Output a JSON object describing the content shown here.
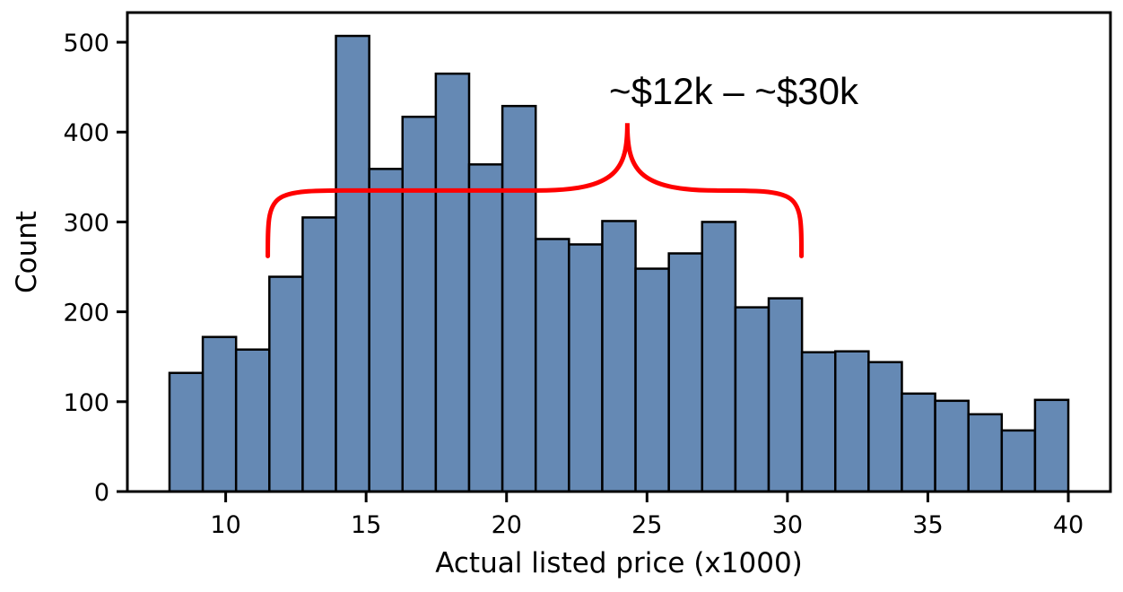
{
  "chart_data": {
    "type": "bar",
    "xlabel": "Actual listed price (x1000)",
    "ylabel": "Count",
    "xlim": [
      6.5,
      41.5
    ],
    "ylim": [
      0,
      533
    ],
    "x_ticks": [
      10,
      15,
      20,
      25,
      30,
      35,
      40
    ],
    "y_ticks": [
      0,
      100,
      200,
      300,
      400,
      500
    ],
    "bin_start": 8,
    "bin_width": 1.1852,
    "values": [
      132,
      172,
      158,
      239,
      305,
      507,
      359,
      417,
      465,
      364,
      429,
      281,
      275,
      301,
      248,
      265,
      300,
      205,
      215,
      155,
      156,
      144,
      109,
      101,
      86,
      68,
      102
    ],
    "bar_color": "#6589b4",
    "edge_color": "#000000",
    "grid": false,
    "annotation": {
      "text": "~$12k – ~$30k",
      "color": "#ff0000",
      "brace_x_range": [
        11.5,
        30.5
      ],
      "brace_y": 335,
      "brace_tip_y": 410,
      "brace_ends_y": 262,
      "brace_tip_x": 24.3
    }
  }
}
